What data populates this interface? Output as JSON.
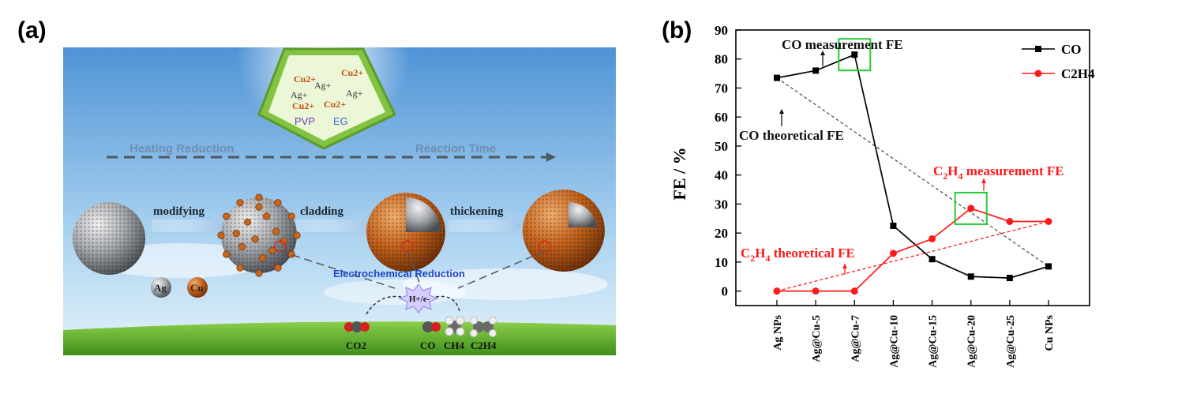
{
  "panels": {
    "a": "(a)",
    "b": "(b)"
  },
  "illustration": {
    "ions": [
      "Cu2+",
      "Cu2+",
      "Ag+",
      "Ag+",
      "Ag+",
      "Cu2+",
      "Cu2+"
    ],
    "solvents": [
      "PVP",
      "EG"
    ],
    "process_left": "Heating Reduction",
    "process_right": "Reaction Time",
    "steps": [
      "modifying",
      "cladding",
      "thickening"
    ],
    "legend_ag": "Ag",
    "legend_cu": "Cu",
    "electro_label": "Electrochemical Reduction",
    "proton_label": "H+/e-",
    "reactant": "CO2",
    "products": [
      "CO",
      "CH4",
      "C2H4"
    ],
    "colors": {
      "sky_top": "#4f93d6",
      "sky_bottom": "#d8ecf8",
      "grass": "#5cae2c",
      "shell": "#c8661e",
      "core": "#a8abb0",
      "frame": "#82c341"
    }
  },
  "chart_data": {
    "type": "line",
    "categories": [
      "Ag NPs",
      "Ag@Cu-5",
      "Ag@Cu-7",
      "Ag@Cu-10",
      "Ag@Cu-15",
      "Ag@Cu-20",
      "Ag@Cu-25",
      "Cu NPs"
    ],
    "series": [
      {
        "name": "CO",
        "color": "#000000",
        "marker": "square",
        "values": [
          73.5,
          76,
          81.5,
          22.5,
          11,
          5,
          4.5,
          8.5
        ]
      },
      {
        "name": "C2H4",
        "color": "#ff1a1a",
        "marker": "circle",
        "values": [
          0,
          0,
          0,
          13,
          18,
          28.5,
          24,
          24
        ]
      }
    ],
    "reference_lines": [
      {
        "name": "CO theoretical FE",
        "color": "#555555",
        "from": [
          0,
          73.5
        ],
        "to": [
          7,
          8.5
        ]
      },
      {
        "name": "C2H4 theoretical FE",
        "color": "#ff1a1a",
        "from": [
          0,
          0
        ],
        "to": [
          7,
          24
        ]
      }
    ],
    "highlight_boxes": [
      {
        "category": 2,
        "value": 81.5
      },
      {
        "category": 5,
        "value": 28.5
      }
    ],
    "annotations": {
      "co_measured": "CO measurement FE",
      "co_theoretical": "CO theoretical FE",
      "c2h4_measured": {
        "main": "C",
        "sub": "2",
        "main2": "H",
        "sub2": "4",
        "rest": " measurement FE"
      },
      "c2h4_theoretical": {
        "main": "C",
        "sub": "2",
        "main2": "H",
        "sub2": "4",
        "rest": " theoretical FE"
      }
    },
    "ylabel": "FE / %",
    "ylim": [
      -5,
      90
    ],
    "yticks": [
      0,
      10,
      20,
      30,
      40,
      50,
      60,
      70,
      80,
      90
    ],
    "legend": {
      "position": "top-right",
      "entries": [
        "CO",
        "C2H4"
      ]
    }
  }
}
